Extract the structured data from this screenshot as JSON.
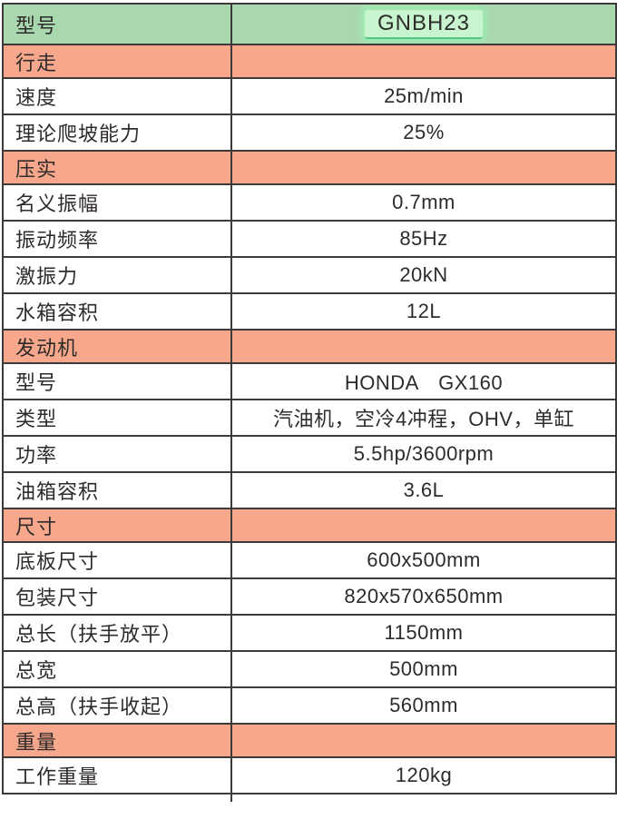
{
  "colors": {
    "model_row_bg": "#a9d7ae",
    "model_highlight_bg": "#c8f5cf",
    "model_highlight_glow": "#9cf0b4",
    "section_row_bg": "#f7a78c",
    "border": "#3e3a39",
    "text": "#2e2b2a"
  },
  "header": {
    "label": "型号",
    "value": "GNBH23"
  },
  "rows": [
    {
      "type": "section",
      "label": "行走",
      "value": ""
    },
    {
      "type": "data",
      "label": "速度",
      "value": "25m/min"
    },
    {
      "type": "data",
      "label": "理论爬坡能力",
      "value": "25%"
    },
    {
      "type": "section",
      "label": "压实",
      "value": ""
    },
    {
      "type": "data",
      "label": "名义振幅",
      "value": "0.7mm"
    },
    {
      "type": "data",
      "label": "振动频率",
      "value": "85Hz"
    },
    {
      "type": "data",
      "label": "激振力",
      "value": "20kN"
    },
    {
      "type": "data",
      "label": "水箱容积",
      "value": "12L"
    },
    {
      "type": "section",
      "label": "发动机",
      "value": ""
    },
    {
      "type": "data",
      "label": "型号",
      "value": "HONDA　GX160"
    },
    {
      "type": "data",
      "label": "类型",
      "value": "汽油机，空冷4冲程，OHV，单缸"
    },
    {
      "type": "data",
      "label": "功率",
      "value": "5.5hp/3600rpm"
    },
    {
      "type": "data",
      "label": "油箱容积",
      "value": "3.6L"
    },
    {
      "type": "section",
      "label": "尺寸",
      "value": ""
    },
    {
      "type": "data",
      "label": "底板尺寸",
      "value": "600x500mm"
    },
    {
      "type": "data",
      "label": "包装尺寸",
      "value": "820x570x650mm"
    },
    {
      "type": "data",
      "label": "总长（扶手放平）",
      "value": "1150mm"
    },
    {
      "type": "data",
      "label": "总宽",
      "value": "500mm"
    },
    {
      "type": "data",
      "label": "总高（扶手收起）",
      "value": "560mm"
    },
    {
      "type": "section",
      "label": "重量",
      "value": ""
    },
    {
      "type": "data",
      "label": "工作重量",
      "value": "120kg"
    }
  ]
}
